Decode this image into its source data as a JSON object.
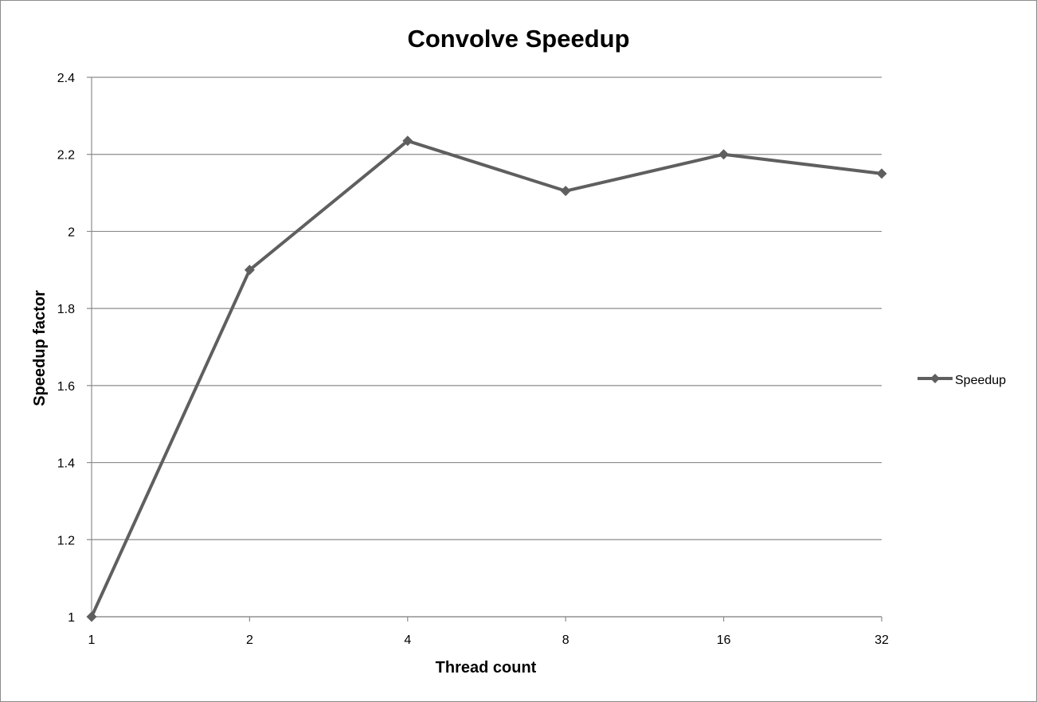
{
  "chart_data": {
    "type": "line",
    "title": "Convolve Speedup",
    "xlabel": "Thread count",
    "ylabel": "Speedup factor",
    "categories": [
      "1",
      "2",
      "4",
      "8",
      "16",
      "32"
    ],
    "series": [
      {
        "name": "Speedup",
        "values": [
          1.0,
          1.9,
          2.235,
          2.105,
          2.2,
          2.15
        ]
      }
    ],
    "ylim": [
      1,
      2.4
    ],
    "yticks": [
      "1",
      "1.2",
      "1.4",
      "1.6",
      "1.8",
      "2",
      "2.2",
      "2.4"
    ],
    "grid": true,
    "legend_position": "right",
    "colors": {
      "series": "#5f5f5f",
      "grid": "#8c8c8c",
      "axis": "#8c8c8c"
    }
  }
}
